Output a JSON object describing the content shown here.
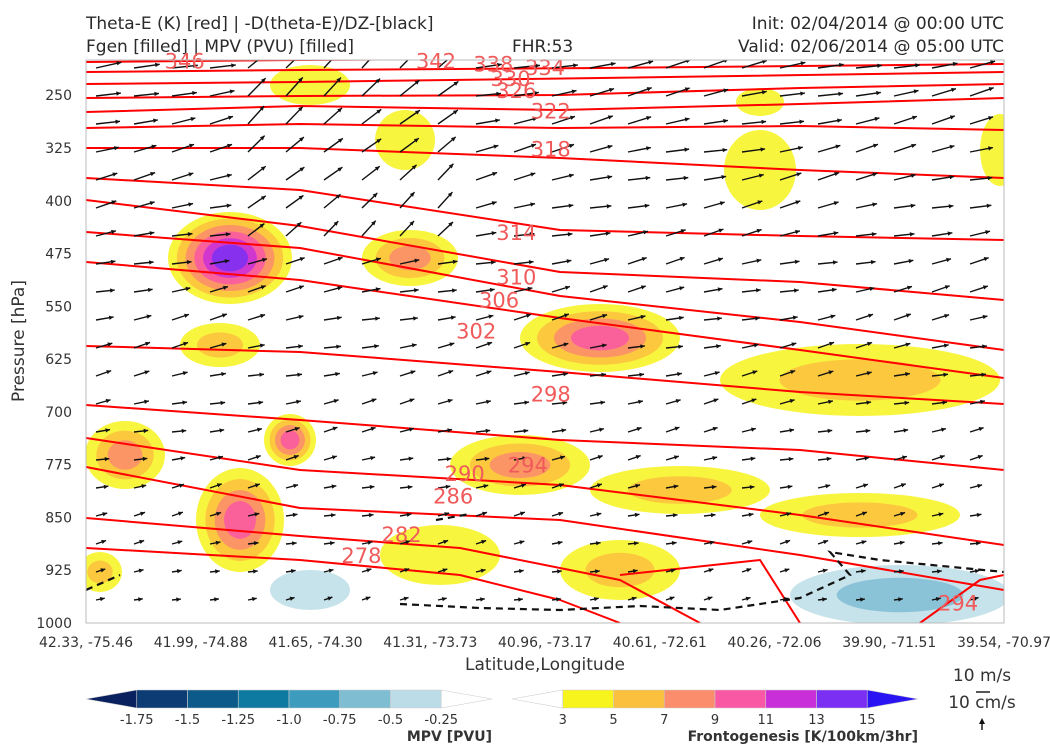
{
  "header": {
    "title_line1": "Theta-E (K) [red] | -D(theta-E)/DZ-[black]",
    "title_line2": "Fgen [filled] | MPV (PVU) [filled]",
    "fhr": "FHR:53",
    "init": "Init: 02/04/2014 @ 00:00 UTC",
    "valid": "Valid: 02/06/2014 @ 05:00 UTC"
  },
  "colors": {
    "theta_e_contour": "#ff0000",
    "theta_e_label": "#f05a5a",
    "vector": "#111111",
    "frame": "#bbbbbb"
  },
  "chart_data": {
    "type": "contour",
    "xlabel": "Latitude,Longitude",
    "ylabel": "Pressure [hPa]",
    "y_axis": {
      "scale": "reversed",
      "ylim": [
        1000,
        200
      ],
      "ticks": [
        250,
        325,
        400,
        475,
        550,
        625,
        700,
        775,
        850,
        925,
        1000
      ]
    },
    "x_ticks": [
      "42.33, -75.46",
      "41.99, -74.88",
      "41.65, -74.30",
      "41.31, -73.73",
      "40.96, -73.17",
      "40.61, -72.61",
      "40.26, -72.06",
      "39.90, -71.51",
      "39.54, -70.97"
    ],
    "theta_e_labels": [
      {
        "text": "346",
        "x": 0.86,
        "p": 212
      },
      {
        "text": "342",
        "x": 3.05,
        "p": 212
      },
      {
        "text": "338",
        "x": 3.55,
        "p": 216
      },
      {
        "text": "334",
        "x": 4.0,
        "p": 221
      },
      {
        "text": "330",
        "x": 3.7,
        "p": 237
      },
      {
        "text": "326",
        "x": 3.75,
        "p": 254
      },
      {
        "text": "322",
        "x": 4.05,
        "p": 283
      },
      {
        "text": "318",
        "x": 4.05,
        "p": 337
      },
      {
        "text": "314",
        "x": 3.75,
        "p": 456
      },
      {
        "text": "310",
        "x": 3.75,
        "p": 519
      },
      {
        "text": "306",
        "x": 3.6,
        "p": 552
      },
      {
        "text": "302",
        "x": 3.4,
        "p": 596
      },
      {
        "text": "298",
        "x": 4.05,
        "p": 685
      },
      {
        "text": "294",
        "x": 3.85,
        "p": 786
      },
      {
        "text": "290",
        "x": 3.3,
        "p": 798
      },
      {
        "text": "286",
        "x": 3.2,
        "p": 830
      },
      {
        "text": "282",
        "x": 2.75,
        "p": 885
      },
      {
        "text": "278",
        "x": 2.4,
        "p": 915
      },
      {
        "text": "294",
        "x": 7.6,
        "p": 982
      }
    ],
    "fill_legends": [
      {
        "name": "MPV [PVU]",
        "ticks": [
          "-1.75",
          "-1.5",
          "-1.25",
          "-1.0",
          "-0.75",
          "-0.5",
          "-0.25"
        ],
        "colors": [
          "#0a2160",
          "#0d3b73",
          "#0b5a8a",
          "#0f7aa1",
          "#3d9bbd",
          "#7fbdd3",
          "#bcdde8",
          "#ffffff"
        ]
      },
      {
        "name": "Frontogenesis [K/100km/3hr]",
        "ticks": [
          "3",
          "5",
          "7",
          "9",
          "11",
          "13",
          "15"
        ],
        "colors": [
          "#ffffff",
          "#f7f31d",
          "#fbc03e",
          "#fb8c6c",
          "#f958a4",
          "#c92fd8",
          "#7a2ff3",
          "#2a14f4"
        ]
      }
    ],
    "vector_key": {
      "horizontal": "10 m/s",
      "vertical": "10 cm/s"
    }
  }
}
